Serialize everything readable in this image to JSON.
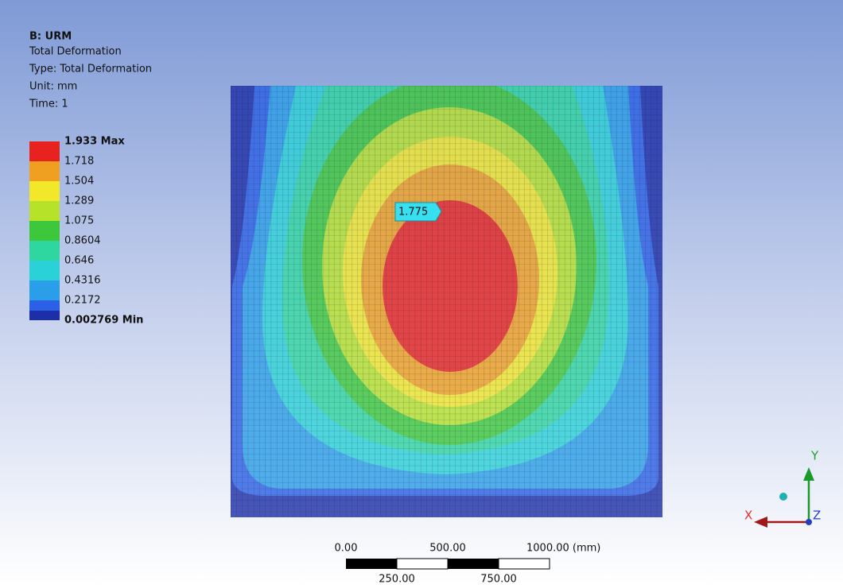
{
  "header": {
    "title": "B: URM",
    "lines": [
      "Total Deformation",
      "Type: Total Deformation",
      "Unit: mm",
      "Time: 1"
    ]
  },
  "legend": {
    "entries": [
      {
        "label": "1.933 Max",
        "color": "#e8221e"
      },
      {
        "label": "1.718",
        "color": "#f0a020"
      },
      {
        "label": "1.504",
        "color": "#f2e82a"
      },
      {
        "label": "1.289",
        "color": "#b6e22a"
      },
      {
        "label": "1.075",
        "color": "#3cc83a"
      },
      {
        "label": "0.8604",
        "color": "#2ed6a0"
      },
      {
        "label": "0.646",
        "color": "#2ad2d8"
      },
      {
        "label": "0.4316",
        "color": "#2a9ee8"
      },
      {
        "label": "0.2172",
        "color": "#2a60e6"
      },
      {
        "label": "0.002769 Min",
        "color": "#1c2ea8"
      }
    ]
  },
  "probe": {
    "label": "1.775"
  },
  "scale_bar": {
    "top_labels": [
      "0.00",
      "500.00",
      "1000.00 (mm)"
    ],
    "bottom_labels": [
      "250.00",
      "750.00"
    ]
  },
  "triad": {
    "x": "X",
    "y": "Y",
    "z": "Z"
  }
}
